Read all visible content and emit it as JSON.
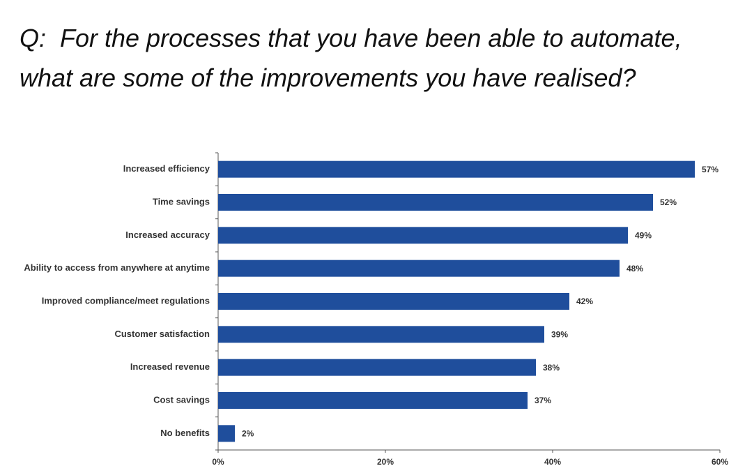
{
  "chart_data": {
    "type": "bar",
    "orientation": "horizontal",
    "title": "Q:  For the processes that you have been able to automate, what are some of the improvements you have realised?",
    "categories": [
      "Increased efficiency",
      "Time savings",
      "Increased accuracy",
      "Ability to access from anywhere at anytime",
      "Improved compliance/meet regulations",
      "Customer satisfaction",
      "Increased revenue",
      "Cost savings",
      "No benefits"
    ],
    "values": [
      57,
      52,
      49,
      48,
      42,
      39,
      38,
      37,
      2
    ],
    "value_labels": [
      "57%",
      "52%",
      "49%",
      "48%",
      "42%",
      "39%",
      "38%",
      "37%",
      "2%"
    ],
    "color": "#1f4e9c",
    "xlim": [
      0,
      60
    ],
    "xticks": [
      {
        "value": 0,
        "label": "0%"
      },
      {
        "value": 20,
        "label": "20%"
      },
      {
        "value": 40,
        "label": "40%"
      },
      {
        "value": 60,
        "label": "60%"
      }
    ],
    "grid": false
  }
}
